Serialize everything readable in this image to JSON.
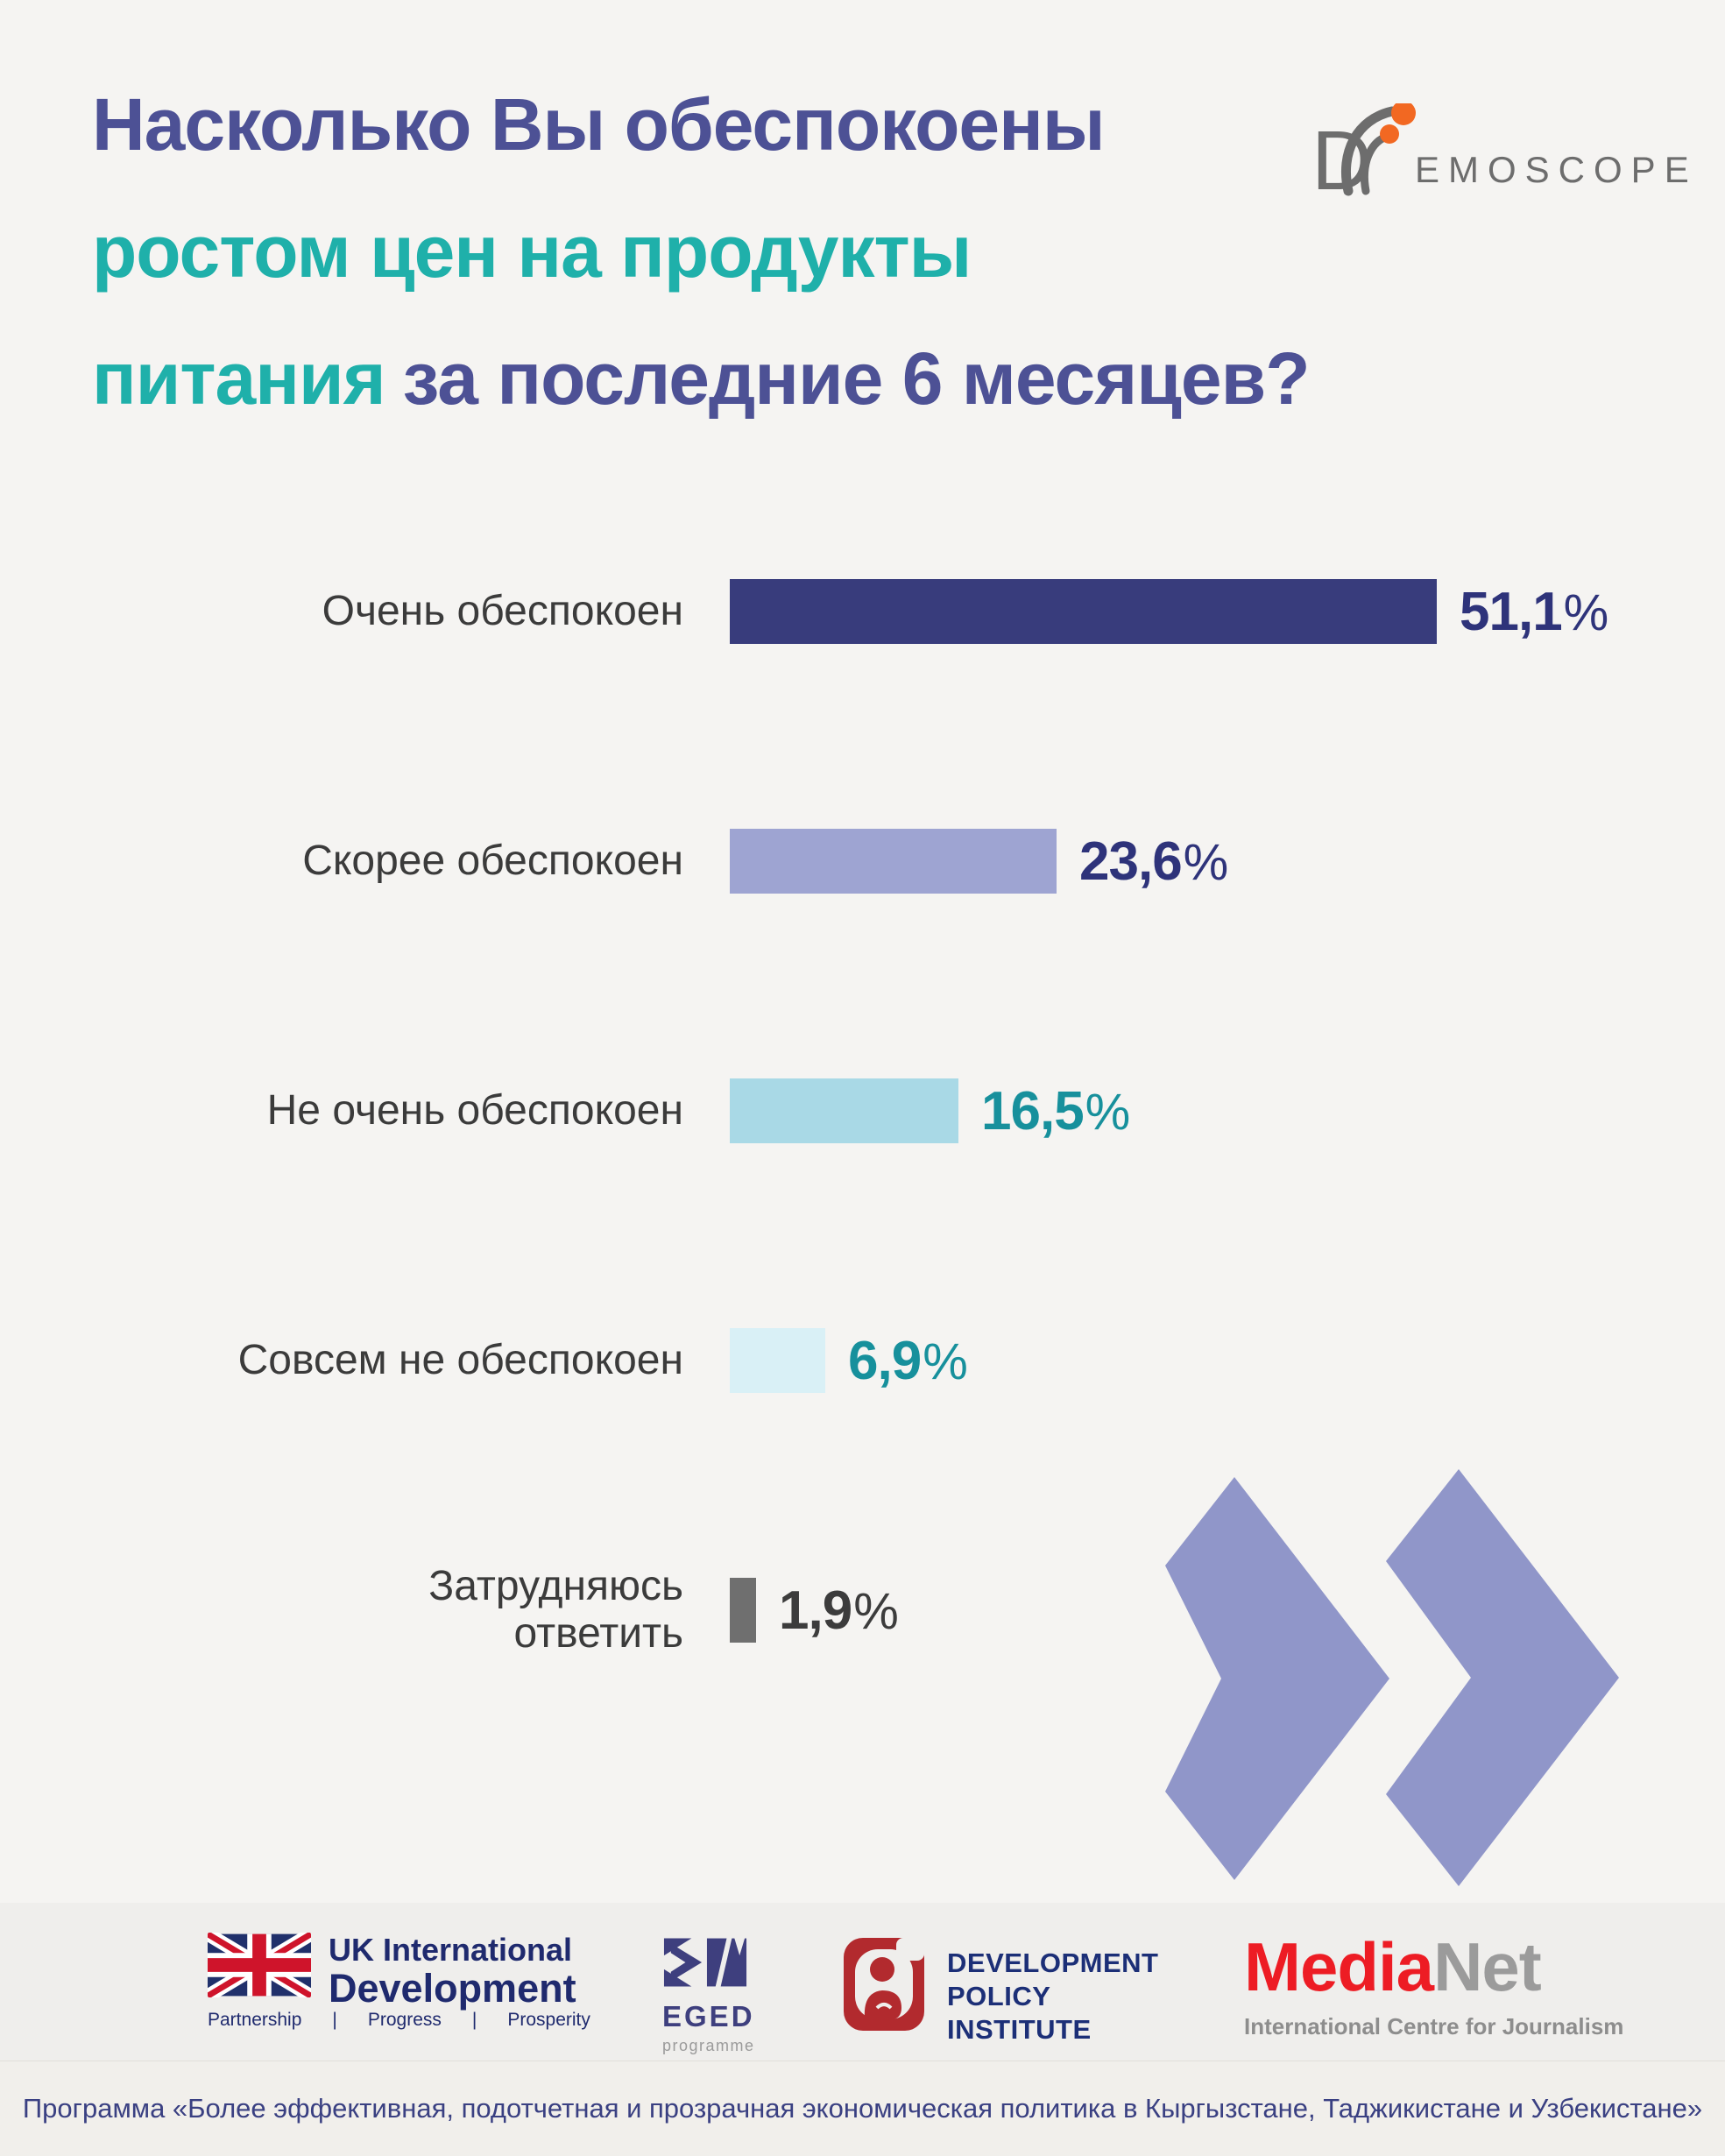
{
  "title": {
    "line1": "Насколько Вы обеспокоены",
    "line2": "ростом цен на продукты",
    "line3_teal": "питания",
    "line3_purple": "за последние 6 месяцев?"
  },
  "demoscope": {
    "d_letter": "D",
    "rest": "EMOSCOPE"
  },
  "chart_data": {
    "type": "bar",
    "orientation": "horizontal",
    "title": "Насколько Вы обеспокоены ростом цен на продукты питания за последние 6 месяцев?",
    "categories": [
      "Очень обеспокоен",
      "Скорее обеспокоен",
      "Не очень обеспокоен",
      "Совсем не обеспокоен",
      "Затрудняюсь\nответить"
    ],
    "values": [
      51.1,
      23.6,
      16.5,
      6.9,
      1.9
    ],
    "value_labels": [
      "51,1%",
      "23,6%",
      "16,5%",
      "6,9%",
      "1,9%"
    ],
    "bar_colors": [
      "#383c7c",
      "#9ea4d2",
      "#a9d9e6",
      "#d9f0f6",
      "#6f6f6f"
    ],
    "value_label_colors": [
      "#2e337a",
      "#2e337a",
      "#17909c",
      "#17909c",
      "#3c3c3c"
    ],
    "unit": "%",
    "xlim": [
      0,
      52
    ],
    "grid": false,
    "legend": false
  },
  "footer": {
    "uk": {
      "line1": "UK International",
      "line2": "Development",
      "tagline": "Partnership      |      Progress      |      Prosperity"
    },
    "eged": {
      "name": "EGED",
      "sub": "programme"
    },
    "dpi": {
      "lines": [
        "DEVELOPMENT",
        "POLICY",
        "INSTITUTE"
      ]
    },
    "medianet": {
      "media": "Media",
      "net": "Net",
      "sub": "International Centre for Journalism"
    }
  },
  "program_note": "Программа «Более эффективная, подотчетная и прозрачная экономическая политика в Кыргызстане, Таджикистане и Узбекистане»",
  "colors": {
    "background": "#f5f4f2",
    "title_purple": "#4d5195",
    "title_teal": "#1fb0aa",
    "label_text": "#3b3b3b",
    "chevron": "#9096c9",
    "footer_band": "#efeeec",
    "program_strip": "#f1efeb",
    "program_text": "#3a4082",
    "uk_navy": "#1f2a6e",
    "uk_red": "#cf142b",
    "eged_navy": "#3e3f7e",
    "dpi_red": "#b22a2e",
    "dpi_navy": "#1c2f77",
    "medianet_red": "#ed1c24",
    "medianet_gray": "#9b9b9b",
    "demoscope_gray": "#6d6d6d",
    "demoscope_orange": "#f26822"
  }
}
